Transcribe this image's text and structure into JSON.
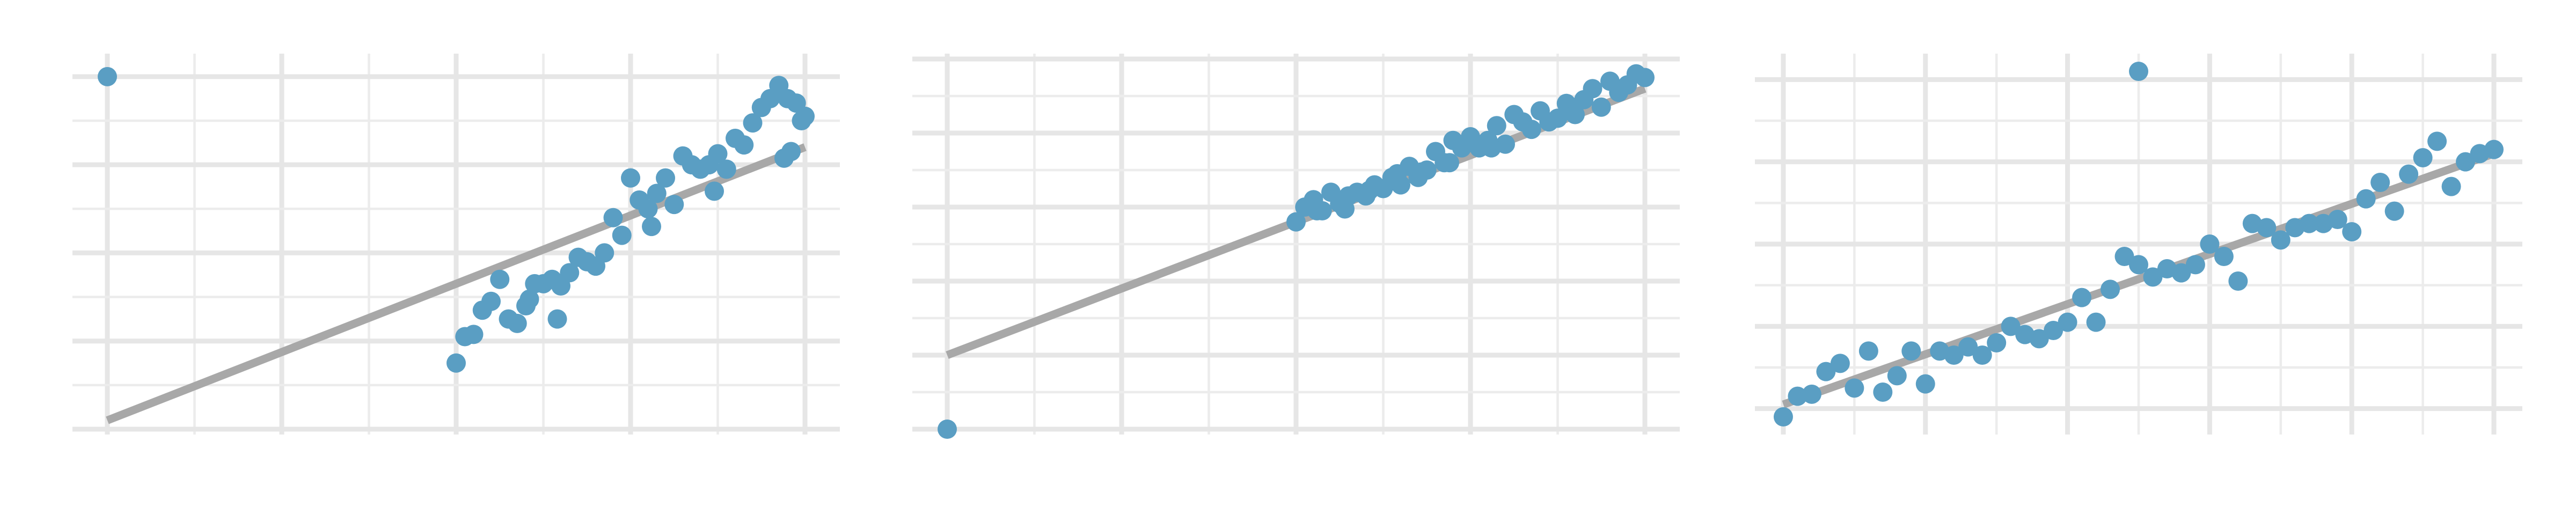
{
  "colors": {
    "point": "#5a9ec3",
    "line": "#a8a8a8",
    "grid_major": "#e6e6e6",
    "grid_minor": "#ececec"
  },
  "chart_data": [
    {
      "type": "scatter",
      "title": "",
      "xlabel": "",
      "ylabel": "",
      "xlim": [
        -0.2,
        4.2
      ],
      "ylim": [
        -2.0,
        6.4
      ],
      "grid": true,
      "fit_line": {
        "x": [
          0,
          4
        ],
        "y": [
          -1.8,
          4.4
        ]
      },
      "x": [
        0.0,
        2.0,
        2.05,
        2.1,
        2.15,
        2.2,
        2.25,
        2.3,
        2.35,
        2.4,
        2.45,
        2.5,
        2.55,
        2.6,
        2.65,
        2.7,
        2.75,
        2.8,
        2.85,
        2.9,
        2.95,
        3.0,
        3.05,
        3.1,
        3.15,
        3.2,
        3.25,
        3.3,
        3.35,
        3.4,
        3.45,
        3.5,
        3.55,
        3.6,
        3.65,
        3.7,
        3.75,
        3.8,
        3.85,
        3.9,
        3.95,
        4.0,
        3.98,
        3.92,
        3.88,
        2.42,
        2.58,
        3.12,
        3.48
      ],
      "y": [
        6.0,
        -0.5,
        0.1,
        0.15,
        0.7,
        0.9,
        1.4,
        0.5,
        0.4,
        0.8,
        1.3,
        1.3,
        1.4,
        1.25,
        1.55,
        1.9,
        1.8,
        1.7,
        2.0,
        2.8,
        2.4,
        3.7,
        3.2,
        3.0,
        3.35,
        3.7,
        3.1,
        4.2,
        4.0,
        3.9,
        4.0,
        4.25,
        3.9,
        4.6,
        4.45,
        4.95,
        5.3,
        5.5,
        5.8,
        5.5,
        5.4,
        5.1,
        5.0,
        4.3,
        4.15,
        0.95,
        0.5,
        2.6,
        3.4
      ]
    },
    {
      "type": "scatter",
      "title": "",
      "xlabel": "",
      "ylabel": "",
      "xlim": [
        -0.2,
        4.2
      ],
      "ylim": [
        0.0,
        10.0
      ],
      "grid": true,
      "fit_line": {
        "x": [
          0,
          4
        ],
        "y": [
          2.0,
          9.2
        ]
      },
      "x": [
        0.0,
        2.0,
        2.05,
        2.1,
        2.15,
        2.2,
        2.25,
        2.3,
        2.35,
        2.4,
        2.45,
        2.5,
        2.55,
        2.6,
        2.65,
        2.7,
        2.75,
        2.8,
        2.85,
        2.9,
        2.95,
        3.0,
        3.05,
        3.1,
        3.15,
        3.2,
        3.25,
        3.3,
        3.35,
        3.4,
        3.45,
        3.5,
        3.55,
        3.6,
        3.65,
        3.7,
        3.75,
        3.8,
        3.85,
        3.9,
        3.95,
        4.0,
        2.12,
        2.28,
        2.42,
        2.58,
        2.72,
        2.88,
        3.12
      ],
      "y": [
        0.0,
        5.6,
        6.0,
        6.2,
        5.9,
        6.4,
        6.1,
        6.3,
        6.4,
        6.3,
        6.6,
        6.5,
        6.8,
        6.6,
        7.1,
        6.8,
        7.0,
        7.5,
        7.2,
        7.8,
        7.6,
        7.9,
        7.6,
        7.8,
        8.2,
        7.7,
        8.5,
        8.3,
        8.1,
        8.6,
        8.3,
        8.4,
        8.8,
        8.5,
        8.9,
        9.2,
        8.7,
        9.4,
        9.1,
        9.3,
        9.6,
        9.5,
        5.9,
        5.95,
        6.45,
        6.9,
        6.95,
        7.2,
        7.6
      ]
    },
    {
      "type": "scatter",
      "title": "",
      "xlabel": "",
      "ylabel": "",
      "xlim": [
        -0.2,
        5.2
      ],
      "ylim": [
        -0.5,
        8.5
      ],
      "grid": true,
      "fit_line": {
        "x": [
          0,
          5
        ],
        "y": [
          0.1,
          6.2
        ]
      },
      "x": [
        0.0,
        0.1,
        0.2,
        0.3,
        0.4,
        0.5,
        0.6,
        0.7,
        0.8,
        0.9,
        1.0,
        1.1,
        1.2,
        1.3,
        1.4,
        1.5,
        1.6,
        1.7,
        1.8,
        1.9,
        2.0,
        2.1,
        2.2,
        2.3,
        2.4,
        2.5,
        2.6,
        2.7,
        2.8,
        2.9,
        3.0,
        3.1,
        3.2,
        3.3,
        3.4,
        3.5,
        3.6,
        3.7,
        3.8,
        3.9,
        4.0,
        4.1,
        4.2,
        4.3,
        4.4,
        4.5,
        4.6,
        4.7,
        4.8,
        4.9,
        5.0,
        2.5
      ],
      "y": [
        -0.2,
        0.3,
        0.35,
        0.9,
        1.1,
        0.5,
        1.4,
        0.4,
        0.8,
        1.4,
        0.6,
        1.4,
        1.3,
        1.5,
        1.3,
        1.6,
        2.0,
        1.8,
        1.7,
        1.9,
        2.1,
        2.7,
        2.1,
        2.9,
        3.7,
        3.5,
        3.2,
        3.4,
        3.3,
        3.5,
        4.0,
        3.7,
        3.1,
        4.5,
        4.4,
        4.1,
        4.4,
        4.5,
        4.5,
        4.6,
        4.3,
        5.1,
        5.5,
        4.8,
        5.7,
        6.1,
        6.5,
        5.4,
        6.0,
        6.2,
        6.3,
        8.2
      ]
    }
  ]
}
